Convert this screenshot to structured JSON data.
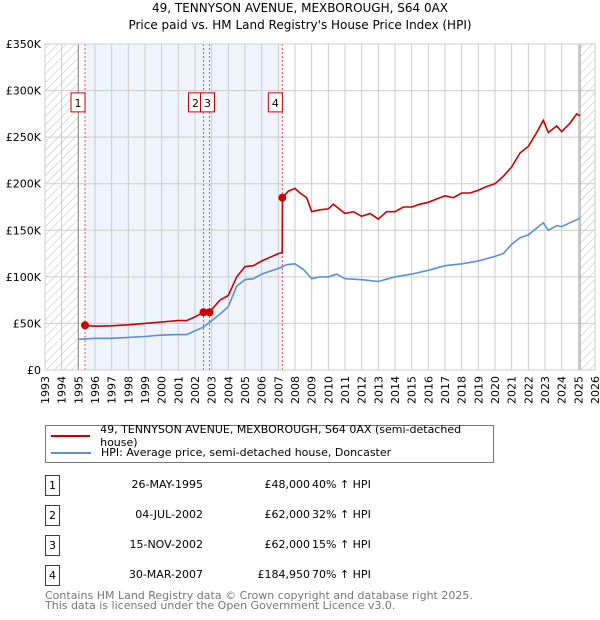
{
  "header": {
    "title": "49, TENNYSON AVENUE, MEXBOROUGH, S64 0AX",
    "subtitle": "Price paid vs. HM Land Registry's House Price Index (HPI)"
  },
  "chart_data": {
    "type": "line",
    "title": "49, TENNYSON AVENUE, MEXBOROUGH, S64 0AX",
    "subtitle": "Price paid vs. HM Land Registry's House Price Index (HPI)",
    "xlim": [
      1993,
      2026
    ],
    "ylim": [
      0,
      350000
    ],
    "x_ticks": [
      "1993",
      "1994",
      "1995",
      "1996",
      "1997",
      "1998",
      "1999",
      "2000",
      "2001",
      "2002",
      "2003",
      "2004",
      "2005",
      "2006",
      "2007",
      "2008",
      "2009",
      "2010",
      "2011",
      "2012",
      "2013",
      "2014",
      "2015",
      "2016",
      "2017",
      "2018",
      "2019",
      "2020",
      "2021",
      "2022",
      "2023",
      "2024",
      "2025",
      "2026"
    ],
    "y_ticks": [
      {
        "v": 0,
        "label": "£0"
      },
      {
        "v": 50000,
        "label": "£50K"
      },
      {
        "v": 100000,
        "label": "£100K"
      },
      {
        "v": 150000,
        "label": "£150K"
      },
      {
        "v": 200000,
        "label": "£200K"
      },
      {
        "v": 250000,
        "label": "£250K"
      },
      {
        "v": 300000,
        "label": "£300K"
      },
      {
        "v": 350000,
        "label": "£350K"
      }
    ],
    "grid": true,
    "colors": {
      "property": "#cc0000",
      "hpi": "#5b8fd6",
      "shade": "#eef3fc"
    },
    "hatched_ranges": [
      [
        1993,
        1995.0
      ],
      [
        2025.1,
        2026
      ]
    ],
    "shaded_range": [
      1995.4,
      2007.24
    ],
    "series": [
      {
        "name": "49, TENNYSON AVENUE, MEXBOROUGH, S64 0AX (semi-detached house)",
        "x": [
          1995.4,
          1996,
          1997,
          1998,
          1999,
          2000,
          2001,
          2001.5,
          2002,
          2002.5,
          2003,
          2003.5,
          2004,
          2004.5,
          2005,
          2005.5,
          2006,
          2006.5,
          2007,
          2007.23,
          2007.25,
          2007.6,
          2008,
          2008.3,
          2008.7,
          2009,
          2009.5,
          2010,
          2010.3,
          2011,
          2011.5,
          2012,
          2012.5,
          2013,
          2013.5,
          2014,
          2014.5,
          2015,
          2015.5,
          2016,
          2017,
          2017.5,
          2018,
          2018.5,
          2019,
          2019.5,
          2020,
          2020.5,
          2021,
          2021.5,
          2022,
          2022.5,
          2022.9,
          2023.2,
          2023.7,
          2024,
          2024.5,
          2024.9,
          2025.1
        ],
        "values": [
          48000,
          47000,
          47500,
          48500,
          50000,
          51500,
          53000,
          53000,
          57000,
          62000,
          65000,
          75000,
          80000,
          100000,
          111000,
          112000,
          117000,
          121000,
          125000,
          126000,
          184950,
          192000,
          195000,
          190000,
          185000,
          170000,
          172000,
          173000,
          178000,
          168000,
          170000,
          165000,
          168000,
          162000,
          170000,
          170000,
          175000,
          175000,
          178000,
          180000,
          187000,
          185000,
          190000,
          190000,
          193000,
          197000,
          200000,
          208000,
          218000,
          233000,
          240000,
          255000,
          268000,
          255000,
          262000,
          256000,
          265000,
          275000,
          273000
        ]
      },
      {
        "name": "HPI: Average price, semi-detached house, Doncaster",
        "x": [
          1995.0,
          1996,
          1997,
          1998,
          1999,
          2000,
          2001,
          2001.5,
          2002,
          2002.5,
          2003,
          2003.5,
          2004,
          2004.5,
          2005,
          2005.5,
          2006,
          2006.5,
          2007,
          2007.5,
          2008,
          2008.5,
          2009,
          2009.5,
          2010,
          2010.5,
          2011,
          2012,
          2013,
          2014,
          2015,
          2016,
          2017,
          2018,
          2019,
          2020,
          2020.5,
          2021,
          2021.5,
          2022,
          2022.9,
          2023.2,
          2023.7,
          2024,
          2024.5,
          2025.1
        ],
        "values": [
          33000,
          34000,
          34000,
          35000,
          36000,
          37500,
          38000,
          38000,
          42000,
          46000,
          53000,
          60000,
          68000,
          90000,
          97000,
          98000,
          103000,
          106000,
          109000,
          113000,
          114000,
          108000,
          98000,
          100000,
          100000,
          103000,
          98000,
          97000,
          95000,
          100000,
          103000,
          107000,
          112000,
          114000,
          117000,
          122000,
          125000,
          135000,
          142000,
          145000,
          158000,
          150000,
          155000,
          154000,
          158000,
          163000
        ]
      }
    ],
    "sales": [
      {
        "n": "1",
        "x": 1995.4,
        "price": 48000
      },
      {
        "n": "2",
        "x": 2002.51,
        "price": 62000
      },
      {
        "n": "3",
        "x": 2002.87,
        "price": 62000
      },
      {
        "n": "4",
        "x": 2007.24,
        "price": 184950
      }
    ],
    "marker_label_value": 290000
  },
  "legend": [
    {
      "label": "49, TENNYSON AVENUE, MEXBOROUGH, S64 0AX (semi-detached house)",
      "color": "#cc0000"
    },
    {
      "label": "HPI: Average price, semi-detached house, Doncaster",
      "color": "#5b8fd6"
    }
  ],
  "transactions": [
    {
      "n": "1",
      "date": "26-MAY-1995",
      "price": "£48,000",
      "hpi": "40% ↑ HPI"
    },
    {
      "n": "2",
      "date": "04-JUL-2002",
      "price": "£62,000",
      "hpi": "32% ↑ HPI"
    },
    {
      "n": "3",
      "date": "15-NOV-2002",
      "price": "£62,000",
      "hpi": "15% ↑ HPI"
    },
    {
      "n": "4",
      "date": "30-MAR-2007",
      "price": "£184,950",
      "hpi": "70% ↑ HPI"
    }
  ],
  "footer": {
    "line1": "Contains HM Land Registry data © Crown copyright and database right 2025.",
    "line2": "This data is licensed under the Open Government Licence v3.0."
  }
}
